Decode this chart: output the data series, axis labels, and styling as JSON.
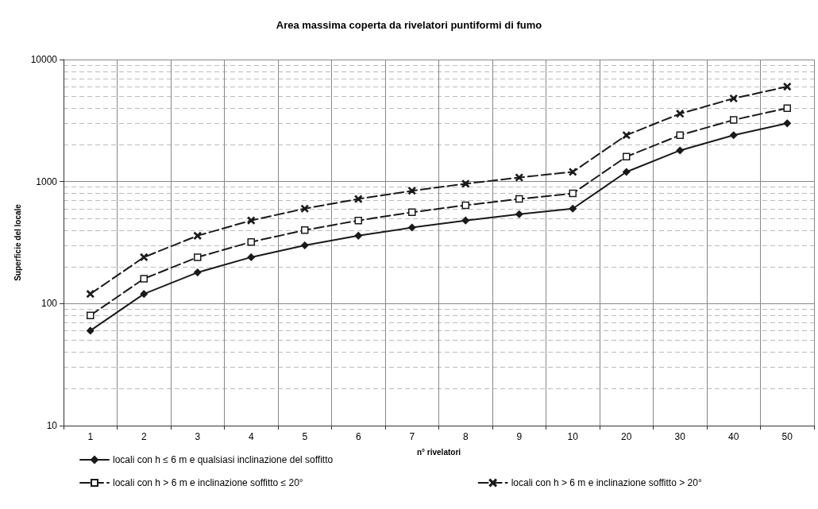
{
  "chart_data": {
    "type": "line",
    "title": "Area massima coperta da rivelatori puntiformi di fumo",
    "xlabel": "n° rivelatori",
    "ylabel": "Superficie del locale",
    "categories": [
      "1",
      "2",
      "3",
      "4",
      "5",
      "6",
      "7",
      "8",
      "9",
      "10",
      "20",
      "30",
      "40",
      "50"
    ],
    "series": [
      {
        "name": "locali con h ≤ 6 m e qualsiasi inclinazione del soffitto",
        "color": "#1a1a1a",
        "marker": "diamond",
        "line_style": "solid",
        "values": [
          60,
          120,
          180,
          240,
          300,
          360,
          420,
          480,
          540,
          600,
          1200,
          1800,
          2400,
          3000
        ]
      },
      {
        "name": "locali con h > 6 m e inclinazione soffitto ≤ 20°",
        "color": "#1a1a1a",
        "marker": "square",
        "line_style": "dashed",
        "values": [
          80,
          160,
          240,
          320,
          400,
          480,
          560,
          640,
          720,
          800,
          1600,
          2400,
          3200,
          4000
        ]
      },
      {
        "name": "locali con h > 6 m e inclinazione soffitto > 20°",
        "color": "#1a1a1a",
        "marker": "cross",
        "line_style": "dashed",
        "values": [
          120,
          240,
          360,
          480,
          600,
          720,
          840,
          960,
          1080,
          1200,
          2400,
          3600,
          4800,
          6000
        ]
      }
    ],
    "log": "y",
    "ylim": [
      10,
      10000
    ],
    "yticks": [
      10,
      100,
      1000,
      10000
    ],
    "grid": true,
    "legend": "bottom"
  }
}
